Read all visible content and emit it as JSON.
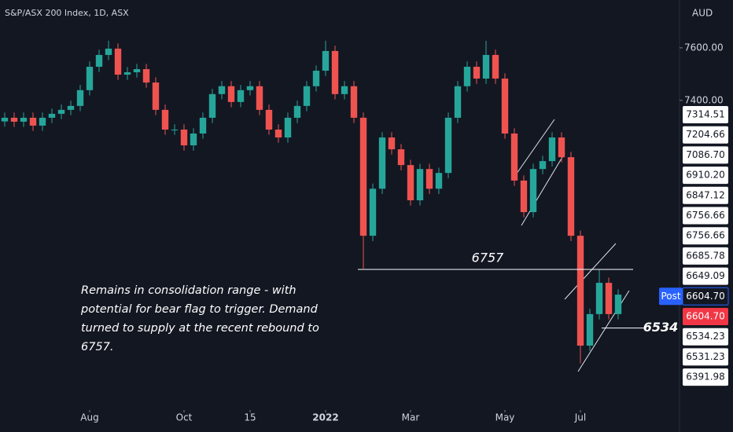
{
  "chart_data": {
    "type": "candlestick",
    "title": "S&P/ASX 200 Index, 1D, ASX",
    "currency": "AUD",
    "up_color": "#26a69a",
    "down_color": "#ef5350",
    "ylim": [
      6243,
      7782
    ],
    "yticks": [
      {
        "value": 7600,
        "label": "7600.00"
      },
      {
        "value": 7400,
        "label": "7400.00"
      }
    ],
    "xlim": [
      -0.5,
      71.5
    ],
    "xticks": [
      {
        "value": 9,
        "label": "Aug"
      },
      {
        "value": 19,
        "label": "Oct"
      },
      {
        "value": 26,
        "label": "15"
      },
      {
        "value": 34,
        "label": "2022"
      },
      {
        "value": 43,
        "label": "Mar"
      },
      {
        "value": 53,
        "label": "May"
      },
      {
        "value": 61,
        "label": "Jul"
      }
    ],
    "open": [
      7320,
      7334,
      7319,
      7334,
      7304,
      7334,
      7349,
      7364,
      7379,
      7439,
      7528,
      7573,
      7597,
      7498,
      7507,
      7519,
      7468,
      7364,
      7289,
      7289,
      7229,
      7274,
      7334,
      7424,
      7454,
      7394,
      7439,
      7454,
      7364,
      7289,
      7259,
      7334,
      7379,
      7454,
      7513,
      7588,
      7424,
      7454,
      7334,
      6885,
      7064,
      7259,
      7214,
      7154,
      7020,
      7139,
      7064,
      7124,
      7334,
      7454,
      7528,
      7483,
      7573,
      7483,
      7274,
      7095,
      6975,
      7139,
      7169,
      7259,
      7184,
      6885,
      6467,
      6587,
      6706,
      6587
    ],
    "high": [
      7354,
      7354,
      7354,
      7354,
      7354,
      7369,
      7384,
      7399,
      7459,
      7548,
      7593,
      7627,
      7617,
      7527,
      7539,
      7539,
      7488,
      7384,
      7309,
      7309,
      7294,
      7354,
      7444,
      7474,
      7474,
      7459,
      7474,
      7474,
      7384,
      7309,
      7354,
      7399,
      7474,
      7533,
      7627,
      7608,
      7474,
      7474,
      7354,
      7084,
      7279,
      7279,
      7234,
      7174,
      7159,
      7159,
      7144,
      7354,
      7474,
      7548,
      7548,
      7627,
      7593,
      7503,
      7294,
      7115,
      7159,
      7189,
      7279,
      7279,
      7204,
      6905,
      6607,
      6757,
      6726,
      6681
    ],
    "low": [
      7300,
      7299,
      7299,
      7284,
      7284,
      7314,
      7329,
      7344,
      7359,
      7419,
      7508,
      7553,
      7478,
      7478,
      7487,
      7448,
      7344,
      7269,
      7269,
      7209,
      7209,
      7254,
      7314,
      7404,
      7374,
      7374,
      7419,
      7344,
      7269,
      7239,
      7239,
      7314,
      7359,
      7434,
      7493,
      7404,
      7404,
      7314,
      6760,
      6865,
      7044,
      7194,
      7134,
      7000,
      7000,
      7044,
      7044,
      7104,
      7314,
      7434,
      7463,
      7463,
      7463,
      7254,
      7075,
      6955,
      6955,
      7119,
      7149,
      7164,
      6865,
      6400,
      6447,
      6567,
      6567,
      6567
    ],
    "close": [
      7334,
      7319,
      7334,
      7304,
      7334,
      7349,
      7364,
      7379,
      7439,
      7528,
      7573,
      7597,
      7498,
      7507,
      7519,
      7468,
      7364,
      7289,
      7289,
      7229,
      7274,
      7334,
      7424,
      7454,
      7394,
      7439,
      7454,
      7364,
      7289,
      7259,
      7334,
      7379,
      7454,
      7513,
      7588,
      7424,
      7454,
      7334,
      6885,
      7064,
      7259,
      7214,
      7154,
      7020,
      7139,
      7064,
      7124,
      7334,
      7454,
      7528,
      7483,
      7573,
      7483,
      7274,
      7095,
      6975,
      7139,
      7169,
      7259,
      7184,
      6885,
      6467,
      6587,
      6706,
      6587,
      6661
    ],
    "levels": [
      {
        "value": 6757,
        "label": "6757"
      },
      {
        "value": 6534,
        "label": "6534"
      }
    ],
    "price_labels": [
      "7314.51",
      "7204.66",
      "7086.70",
      "6910.20",
      "6847.12",
      "6756.66",
      "6756.66",
      "6685.78",
      "6649.09",
      "6604.70",
      "6604.70",
      "6534.23",
      "6531.23",
      "6391.98"
    ],
    "post_label": "Post",
    "annotation": [
      "Remains in consolidation range - with",
      "potential for bear flag to trigger. Demand",
      "turned to supply at the recent rebound to",
      "6757."
    ]
  }
}
